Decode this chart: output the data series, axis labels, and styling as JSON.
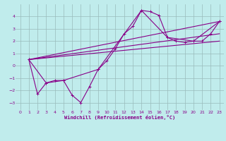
{
  "xlabel": "Windchill (Refroidissement éolien,°C)",
  "background_color": "#c0ecec",
  "grid_color": "#99bbbb",
  "line_color": "#880088",
  "xlim": [
    -0.5,
    23.5
  ],
  "ylim": [
    -3.6,
    5.0
  ],
  "yticks": [
    -3,
    -2,
    -1,
    0,
    1,
    2,
    3,
    4
  ],
  "xticks": [
    0,
    1,
    2,
    3,
    4,
    5,
    6,
    7,
    8,
    9,
    10,
    11,
    12,
    13,
    14,
    15,
    16,
    17,
    18,
    19,
    20,
    21,
    22,
    23
  ],
  "series_main": {
    "x": [
      1,
      2,
      3,
      4,
      5,
      6,
      7,
      8,
      9,
      10,
      11,
      12,
      13,
      14,
      15,
      16,
      17,
      18,
      19,
      20,
      21,
      22,
      23
    ],
    "y": [
      0.5,
      -2.3,
      -1.4,
      -1.2,
      -1.2,
      -2.4,
      -3.0,
      -1.7,
      -0.3,
      0.4,
      1.4,
      2.6,
      3.2,
      4.5,
      4.4,
      4.1,
      2.3,
      2.0,
      1.9,
      2.0,
      2.0,
      2.6,
      3.6
    ]
  },
  "series_secondary": {
    "x": [
      1,
      3,
      5,
      9,
      14,
      17,
      20,
      23
    ],
    "y": [
      0.5,
      -1.4,
      -1.2,
      -0.3,
      4.5,
      2.3,
      2.0,
      3.6
    ]
  },
  "line1": {
    "x": [
      1,
      23
    ],
    "y": [
      0.5,
      3.6
    ]
  },
  "line2": {
    "x": [
      1,
      23
    ],
    "y": [
      0.5,
      2.0
    ]
  },
  "line3": {
    "x": [
      1,
      23
    ],
    "y": [
      0.5,
      2.6
    ]
  }
}
